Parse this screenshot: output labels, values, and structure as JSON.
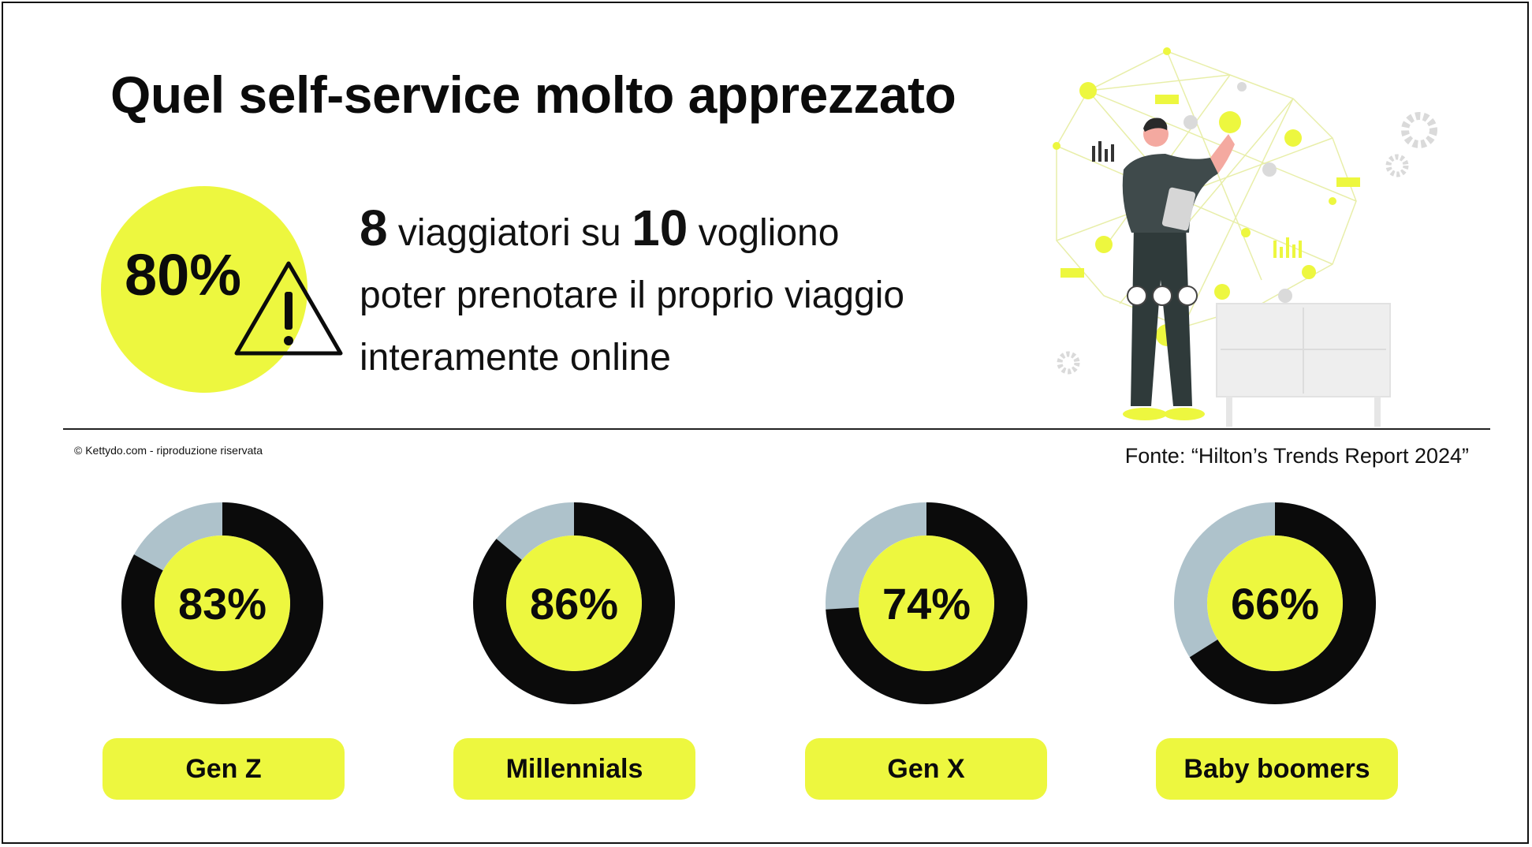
{
  "title": "Quel self-service molto apprezzato",
  "headline": {
    "percent": "80%",
    "stat_num1": "8",
    "stat_text1": " viaggiatori su ",
    "stat_num2": "10",
    "stat_text2": " vogliono",
    "stat_line2": "poter prenotare il proprio viaggio",
    "stat_line3": "interamente online"
  },
  "copyright": "© Kettydo.com - riproduzione riservata",
  "source": "Fonte: “Hilton’s Trends Report 2024”",
  "colors": {
    "accent": "#EDF73F",
    "dark": "#0B0B0B",
    "remainder": "#AEC2CB"
  },
  "icons": [
    "warning-triangle-icon",
    "person-tablet-illustration"
  ],
  "chart_data": {
    "type": "pie",
    "title": "",
    "categories": [
      "Gen Z",
      "Millennials",
      "Gen X",
      "Baby boomers"
    ],
    "values": [
      83,
      86,
      74,
      66
    ],
    "labels": [
      "83%",
      "86%",
      "74%",
      "66%"
    ],
    "unit": "%",
    "max": 100
  }
}
